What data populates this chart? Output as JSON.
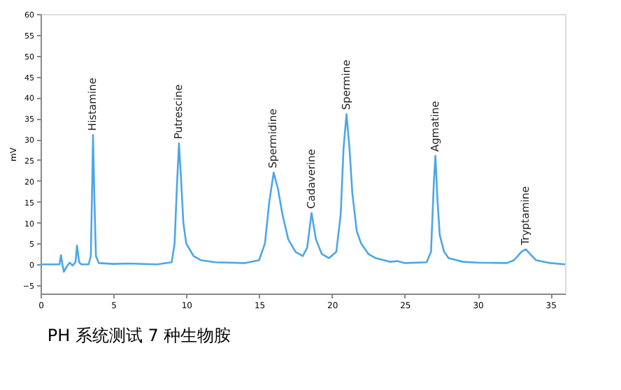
{
  "chart_data": {
    "type": "line",
    "ylabel": "mV",
    "xlim": [
      0,
      36
    ],
    "ylim": [
      -7,
      60
    ],
    "xticks": [
      0,
      5,
      10,
      15,
      20,
      25,
      30,
      35
    ],
    "yticks": [
      -5,
      0,
      5,
      10,
      15,
      20,
      25,
      30,
      35,
      40,
      45,
      50,
      55,
      60
    ],
    "x": [
      0,
      1.3,
      1.4,
      1.5,
      1.6,
      1.8,
      2.0,
      2.2,
      2.4,
      2.5,
      2.65,
      2.8,
      3.3,
      3.45,
      3.55,
      3.6,
      3.7,
      3.8,
      4.0,
      5,
      6,
      8,
      9.0,
      9.2,
      9.35,
      9.5,
      9.65,
      9.8,
      10,
      10.5,
      11,
      12,
      14,
      15,
      15.4,
      15.7,
      16.0,
      16.3,
      16.6,
      17,
      17.5,
      18,
      18.3,
      18.6,
      18.9,
      19.3,
      19.8,
      20.3,
      20.6,
      20.8,
      21.0,
      21.2,
      21.4,
      21.7,
      22,
      22.5,
      23,
      24,
      24.5,
      25,
      26.5,
      26.8,
      27.0,
      27.1,
      27.25,
      27.4,
      27.7,
      28,
      29,
      30,
      32,
      32.5,
      33,
      33.3,
      33.6,
      34,
      35,
      36
    ],
    "series": [
      {
        "color": "#4da6e8",
        "values": [
          0,
          0,
          2.2,
          0,
          -1.8,
          -0.5,
          0.4,
          -0.3,
          0.5,
          4.5,
          0.5,
          0,
          0,
          2,
          20,
          31,
          15,
          2,
          0.3,
          0.1,
          0.2,
          0,
          0.5,
          5,
          18,
          29,
          20,
          10,
          5,
          2,
          1,
          0.5,
          0.3,
          1,
          5,
          15,
          22,
          18,
          12,
          6,
          3,
          2,
          4,
          12.3,
          6,
          2.5,
          1.5,
          3,
          12,
          28,
          36,
          28,
          17,
          8,
          5,
          2.5,
          1.5,
          0.6,
          0.8,
          0.3,
          0.5,
          3,
          20,
          26,
          15,
          7,
          3,
          1.5,
          0.6,
          0.4,
          0.3,
          1,
          3,
          3.6,
          2.5,
          1,
          0.3,
          0
        ]
      }
    ],
    "annotations": [
      {
        "text": "Histamine",
        "x": 3.6,
        "y": 31
      },
      {
        "text": "Putrescine",
        "x": 9.5,
        "y": 29
      },
      {
        "text": "Spermidine",
        "x": 16.0,
        "y": 22
      },
      {
        "text": "Cadaverine",
        "x": 18.6,
        "y": 12.3
      },
      {
        "text": "Spermine",
        "x": 21.0,
        "y": 36
      },
      {
        "text": "Agmatine",
        "x": 27.1,
        "y": 26
      },
      {
        "text": "Tryptamine",
        "x": 33.3,
        "y": 3.6
      },
      "PH 系统测试 7 种生物胺"
    ]
  }
}
